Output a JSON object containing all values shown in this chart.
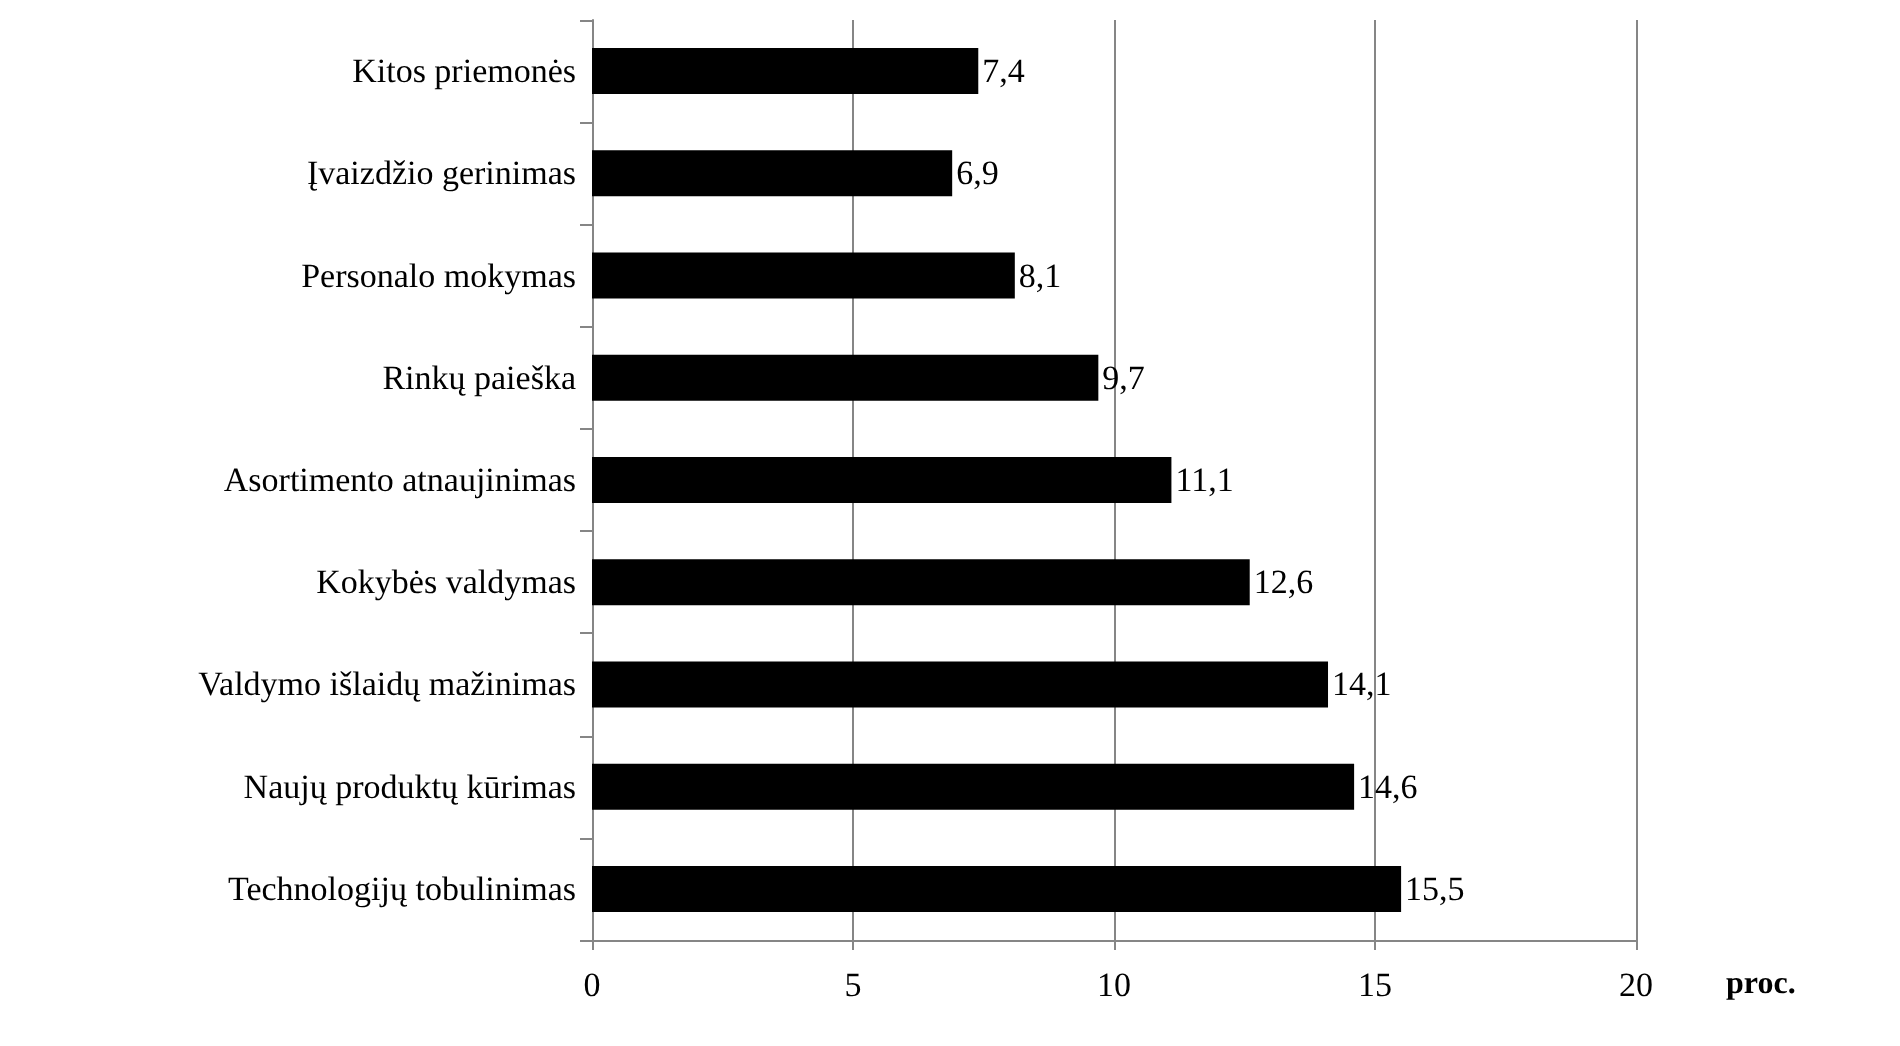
{
  "chart_data": {
    "type": "bar",
    "orientation": "horizontal",
    "xlabel": "proc.",
    "categories": [
      "Kitos priemonės",
      "Įvaizdžio gerinimas",
      "Personalo mokymas",
      "Rinkų paieška",
      "Asortimento atnaujinimas",
      "Kokybės valdymas",
      "Valdymo išlaidų mažinimas",
      "Naujų produktų kūrimas",
      "Technologijų tobulinimas"
    ],
    "values": [
      7.4,
      6.9,
      8.1,
      9.7,
      11.1,
      12.6,
      14.1,
      14.6,
      15.5
    ],
    "value_labels": [
      "7,4",
      "6,9",
      "8,1",
      "9,7",
      "11,1",
      "12,6",
      "14,1",
      "14,6",
      "15,5"
    ],
    "color": "#000000",
    "xlim": [
      0,
      20
    ],
    "xticks": [
      0,
      5,
      10,
      15,
      20
    ],
    "grid": "x"
  }
}
